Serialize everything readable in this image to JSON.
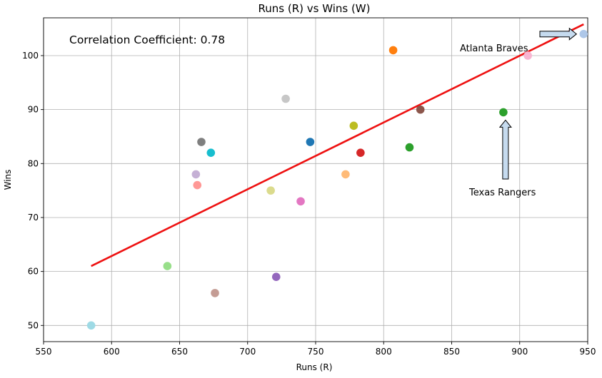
{
  "chart_data": {
    "type": "scatter",
    "title": "Runs (R) vs Wins (W)",
    "xlabel": "Runs (R)",
    "ylabel": "Wins",
    "xlim": [
      550,
      950
    ],
    "ylim": [
      47,
      107
    ],
    "xticks": [
      550,
      600,
      650,
      700,
      750,
      800,
      850,
      900,
      950
    ],
    "yticks": [
      50,
      60,
      70,
      80,
      90,
      100
    ],
    "grid": true,
    "correlation_text": "Correlation Coefficient: 0.78",
    "points": [
      {
        "x": 585,
        "y": 50,
        "color": "#9edae5"
      },
      {
        "x": 641,
        "y": 61,
        "color": "#98df8a"
      },
      {
        "x": 662,
        "y": 78,
        "color": "#c5b0d5"
      },
      {
        "x": 663,
        "y": 76,
        "color": "#ff9896"
      },
      {
        "x": 666,
        "y": 84,
        "color": "#7f7f7f"
      },
      {
        "x": 673,
        "y": 82,
        "color": "#17becf"
      },
      {
        "x": 676,
        "y": 56,
        "color": "#c49c94"
      },
      {
        "x": 717,
        "y": 75,
        "color": "#dbdb8d"
      },
      {
        "x": 721,
        "y": 59,
        "color": "#9467bd"
      },
      {
        "x": 728,
        "y": 92,
        "color": "#c7c7c7"
      },
      {
        "x": 739,
        "y": 73,
        "color": "#e377c2"
      },
      {
        "x": 746,
        "y": 84,
        "color": "#1f77b4"
      },
      {
        "x": 772,
        "y": 78,
        "color": "#ffbb78"
      },
      {
        "x": 778,
        "y": 87,
        "color": "#bcbd22"
      },
      {
        "x": 783,
        "y": 82,
        "color": "#d62728"
      },
      {
        "x": 807,
        "y": 101,
        "color": "#ff7f0e"
      },
      {
        "x": 819,
        "y": 83,
        "color": "#2ca02c"
      },
      {
        "x": 827,
        "y": 90,
        "color": "#8c564b"
      },
      {
        "x": 888,
        "y": 89.5,
        "color": "#2ca02c"
      },
      {
        "x": 906,
        "y": 100,
        "color": "#f7b6d2"
      },
      {
        "x": 947,
        "y": 104,
        "color": "#aec7e8"
      }
    ],
    "trendline": {
      "x": [
        585,
        947
      ],
      "y": [
        61,
        105.8
      ],
      "color": "#ee1111"
    },
    "annotations": [
      {
        "text": "Atlanta Braves",
        "x": 947,
        "y": 104
      },
      {
        "text": "Texas Rangers",
        "x": 888,
        "y": 89.5
      }
    ]
  }
}
